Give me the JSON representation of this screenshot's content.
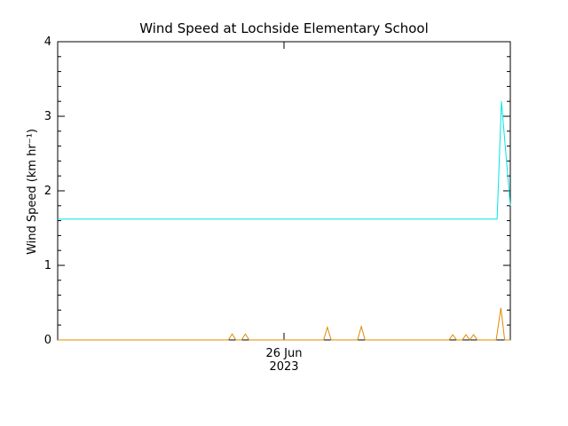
{
  "chart_data": {
    "type": "line",
    "title": "Wind Speed at Lochside Elementary School",
    "y_label": "Wind Speed (km hr⁻¹)",
    "xlim": [
      0,
      48
    ],
    "xticks": [
      {
        "value": 24,
        "label": "26 Jun",
        "year": "2023"
      }
    ],
    "ylim": [
      0,
      4
    ],
    "yticks": [
      0,
      1,
      2,
      3,
      4
    ],
    "series": [
      {
        "color": "#00e5e5",
        "x": [
          0,
          46.6,
          47.06,
          48
        ],
        "values": [
          1.62,
          1.62,
          3.2,
          1.8
        ]
      },
      {
        "color": "#e08a00",
        "x": [
          0,
          18.1,
          18.5,
          18.9,
          19.5,
          19.9,
          20.3,
          28.2,
          28.6,
          29.0,
          31.8,
          32.2,
          32.6,
          41.5,
          41.9,
          42.3,
          42.9,
          43.3,
          43.7,
          44.1,
          44.5,
          46.5,
          47.0,
          47.4,
          48
        ],
        "values": [
          0,
          0,
          0.08,
          0,
          0,
          0.08,
          0,
          0,
          0.17,
          0,
          0,
          0.18,
          0,
          0,
          0.07,
          0,
          0,
          0.07,
          0,
          0.07,
          0,
          0,
          0.43,
          0,
          0
        ]
      }
    ]
  }
}
